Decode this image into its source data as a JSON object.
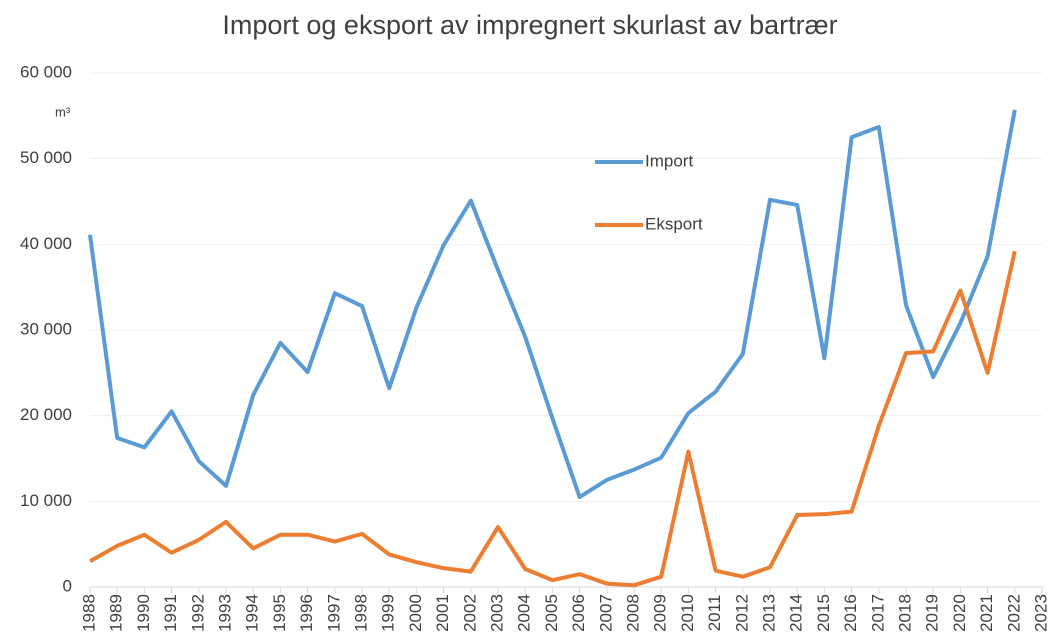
{
  "chart_data": {
    "type": "line",
    "title": "Import og eksport av impregnert skurlast av bartrær",
    "y_unit": "m³",
    "categories": [
      "1988",
      "1989",
      "1990",
      "1991",
      "1992",
      "1993",
      "1994",
      "1995",
      "1996",
      "1997",
      "1998",
      "1999",
      "2000",
      "2001",
      "2002",
      "2003",
      "2004",
      "2005",
      "2006",
      "2007",
      "2008",
      "2009",
      "2010",
      "2011",
      "2012",
      "2013",
      "2014",
      "2015",
      "2016",
      "2017",
      "2018",
      "2019",
      "2020",
      "2021",
      "2022",
      "2023"
    ],
    "series": [
      {
        "name": "Import",
        "color": "#5b9bd5",
        "values": [
          41100,
          17400,
          16300,
          20500,
          14700,
          11800,
          22400,
          28500,
          25100,
          34300,
          32800,
          23200,
          32600,
          39900,
          45100,
          37000,
          29200,
          19700,
          10500,
          12500,
          13700,
          15100,
          20300,
          22800,
          27200,
          45200,
          44600,
          26700,
          52500,
          53700,
          32900,
          24500,
          30800,
          38600,
          55700,
          null
        ]
      },
      {
        "name": "Eksport",
        "color": "#ed7d31",
        "values": [
          3000,
          4800,
          6100,
          4000,
          5500,
          7600,
          4500,
          6100,
          6100,
          5300,
          6200,
          3800,
          2900,
          2200,
          1800,
          7000,
          2100,
          800,
          1500,
          400,
          200,
          1200,
          15800,
          1900,
          1200,
          2300,
          8400,
          8500,
          8800,
          18800,
          27300,
          27500,
          34600,
          25000,
          39200,
          null
        ]
      }
    ],
    "ylim": [
      0,
      60000
    ],
    "yticks": [
      0,
      {
        "value": 10000,
        "label": "10 000"
      },
      {
        "value": 20000,
        "label": "20 000"
      },
      {
        "value": 30000,
        "label": "30 000"
      },
      {
        "value": 40000,
        "label": "40 000"
      },
      {
        "value": 50000,
        "label": "50 000"
      },
      {
        "value": 60000,
        "label": "60 000"
      }
    ],
    "grid": true
  }
}
